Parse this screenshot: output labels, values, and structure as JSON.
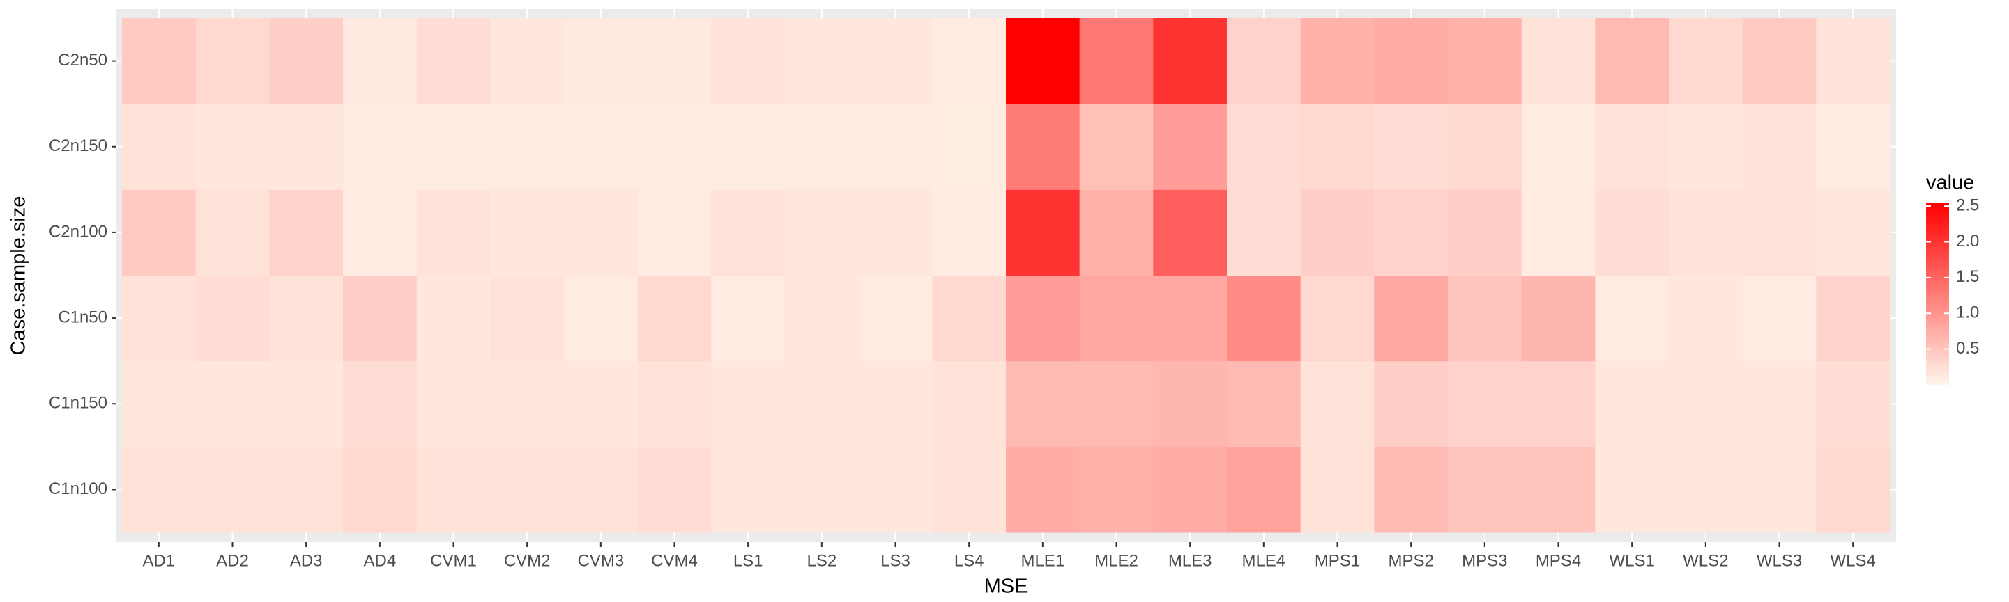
{
  "chart_data": {
    "type": "heatmap",
    "x_label": "MSE",
    "y_label": "Case.sample.size",
    "categories": [
      "AD1",
      "AD2",
      "AD3",
      "AD4",
      "CVM1",
      "CVM2",
      "CVM3",
      "CVM4",
      "LS1",
      "LS2",
      "LS3",
      "LS4",
      "MLE1",
      "MLE2",
      "MLE3",
      "MLE4",
      "MPS1",
      "MPS2",
      "MPS3",
      "MPS4",
      "WLS1",
      "WLS2",
      "WLS3",
      "WLS4"
    ],
    "y_categories": [
      "C1n100",
      "C1n150",
      "C1n50",
      "C2n100",
      "C2n150",
      "C2n50"
    ],
    "values": [
      [
        0.2,
        0.2,
        0.2,
        0.3,
        0.2,
        0.2,
        0.2,
        0.25,
        0.15,
        0.15,
        0.15,
        0.2,
        0.75,
        0.7,
        0.75,
        0.85,
        0.2,
        0.6,
        0.5,
        0.5,
        0.15,
        0.15,
        0.15,
        0.3
      ],
      [
        0.15,
        0.15,
        0.15,
        0.25,
        0.15,
        0.15,
        0.15,
        0.2,
        0.15,
        0.15,
        0.15,
        0.2,
        0.6,
        0.6,
        0.65,
        0.6,
        0.2,
        0.4,
        0.35,
        0.35,
        0.15,
        0.15,
        0.15,
        0.25
      ],
      [
        0.2,
        0.25,
        0.2,
        0.4,
        0.15,
        0.2,
        0.1,
        0.3,
        0.1,
        0.15,
        0.1,
        0.3,
        0.9,
        0.8,
        0.8,
        1.1,
        0.3,
        0.8,
        0.5,
        0.65,
        0.1,
        0.15,
        0.1,
        0.35
      ],
      [
        0.45,
        0.2,
        0.35,
        0.1,
        0.2,
        0.15,
        0.15,
        0.1,
        0.2,
        0.15,
        0.15,
        0.1,
        2.0,
        0.7,
        1.55,
        0.25,
        0.4,
        0.35,
        0.4,
        0.1,
        0.25,
        0.2,
        0.2,
        0.15
      ],
      [
        0.2,
        0.15,
        0.15,
        0.1,
        0.1,
        0.1,
        0.1,
        0.1,
        0.1,
        0.1,
        0.1,
        0.08,
        1.25,
        0.55,
        0.9,
        0.25,
        0.3,
        0.25,
        0.3,
        0.1,
        0.2,
        0.15,
        0.2,
        0.1
      ],
      [
        0.45,
        0.3,
        0.4,
        0.12,
        0.25,
        0.15,
        0.12,
        0.12,
        0.2,
        0.15,
        0.15,
        0.1,
        2.54,
        1.3,
        2.0,
        0.35,
        0.7,
        0.75,
        0.7,
        0.2,
        0.6,
        0.3,
        0.45,
        0.2
      ]
    ],
    "legend_title": "value",
    "zlim": [
      0,
      2.54
    ],
    "zticks": [
      0.5,
      {
        "value": 1,
        "label": "1.0"
      },
      1.5,
      {
        "value": 2,
        "label": "2.0"
      },
      2.5
    ],
    "low_color": "#FFF5EB",
    "high_color": "#FF0000",
    "grid": true
  }
}
